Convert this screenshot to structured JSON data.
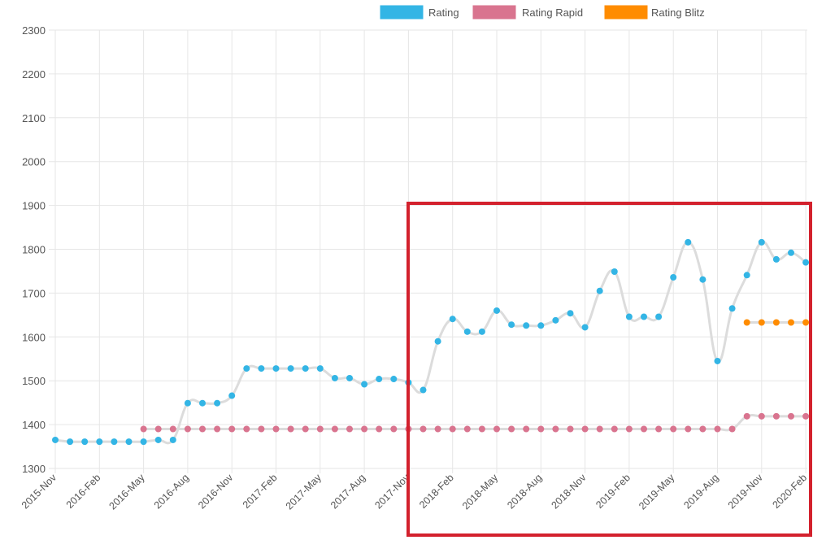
{
  "chart_data": {
    "type": "line",
    "title": "",
    "xlabel": "",
    "ylabel": "",
    "ylim": [
      1300,
      2300
    ],
    "y_ticks": [
      2300,
      2200,
      2100,
      2000,
      1900,
      1800,
      1700,
      1600,
      1500,
      1400,
      1300
    ],
    "grid": true,
    "legend_position": "top",
    "x_tick_labels": [
      "2015-Nov",
      "2016-Feb",
      "2016-May",
      "2016-Aug",
      "2016-Nov",
      "2017-Feb",
      "2017-May",
      "2017-Aug",
      "2017-Nov",
      "2018-Feb",
      "2018-May",
      "2018-Aug",
      "2018-Nov",
      "2019-Feb",
      "2019-May",
      "2019-Aug",
      "2019-Nov",
      "2020-Feb"
    ],
    "x": [
      "2015-Nov",
      "2015-Dec",
      "2016-Jan",
      "2016-Feb",
      "2016-Mar",
      "2016-Apr",
      "2016-May",
      "2016-Jun",
      "2016-Jul",
      "2016-Aug",
      "2016-Sep",
      "2016-Oct",
      "2016-Nov",
      "2016-Dec",
      "2017-Jan",
      "2017-Feb",
      "2017-Mar",
      "2017-Apr",
      "2017-May",
      "2017-Jun",
      "2017-Jul",
      "2017-Aug",
      "2017-Sep",
      "2017-Oct",
      "2017-Nov",
      "2017-Dec",
      "2018-Jan",
      "2018-Feb",
      "2018-Mar",
      "2018-Apr",
      "2018-May",
      "2018-Jun",
      "2018-Jul",
      "2018-Aug",
      "2018-Sep",
      "2018-Oct",
      "2018-Nov",
      "2018-Dec",
      "2019-Jan",
      "2019-Feb",
      "2019-Mar",
      "2019-Apr",
      "2019-May",
      "2019-Jun",
      "2019-Jul",
      "2019-Aug",
      "2019-Sep",
      "2019-Oct",
      "2019-Nov",
      "2019-Dec",
      "2020-Jan",
      "2020-Feb"
    ],
    "series": [
      {
        "name": "Rating",
        "color": "#33b5e5",
        "values": [
          1365,
          1361,
          1361,
          1361,
          1361,
          1361,
          1361,
          1365,
          1365,
          1449,
          1449,
          1449,
          1466,
          1528,
          1528,
          1528,
          1528,
          1528,
          1528,
          1506,
          1506,
          1492,
          1504,
          1504,
          1496,
          1479,
          1590,
          1641,
          1612,
          1612,
          1660,
          1628,
          1626,
          1626,
          1638,
          1654,
          1622,
          1705,
          1749,
          1646,
          1646,
          1646,
          1736,
          1816,
          1731,
          1545,
          1665,
          1741,
          1816,
          1777,
          1792,
          1770
        ]
      },
      {
        "name": "Rating Rapid",
        "color": "#d9748f",
        "values": [
          null,
          null,
          null,
          null,
          null,
          null,
          1390,
          1390,
          1390,
          1390,
          1390,
          1390,
          1390,
          1390,
          1390,
          1390,
          1390,
          1390,
          1390,
          1390,
          1390,
          1390,
          1390,
          1390,
          1390,
          1390,
          1390,
          1390,
          1390,
          1390,
          1390,
          1390,
          1390,
          1390,
          1390,
          1390,
          1390,
          1390,
          1390,
          1390,
          1390,
          1390,
          1390,
          1390,
          1390,
          1390,
          1390,
          1419,
          1419,
          1419,
          1419,
          1419
        ]
      },
      {
        "name": "Rating Blitz",
        "color": "#ff8c00",
        "values": [
          null,
          null,
          null,
          null,
          null,
          null,
          null,
          null,
          null,
          null,
          null,
          null,
          null,
          null,
          null,
          null,
          null,
          null,
          null,
          null,
          null,
          null,
          null,
          null,
          null,
          null,
          null,
          null,
          null,
          null,
          null,
          null,
          null,
          null,
          null,
          null,
          null,
          null,
          null,
          null,
          null,
          null,
          null,
          null,
          null,
          null,
          null,
          1633,
          1633,
          1633,
          1633,
          1633
        ]
      }
    ]
  }
}
